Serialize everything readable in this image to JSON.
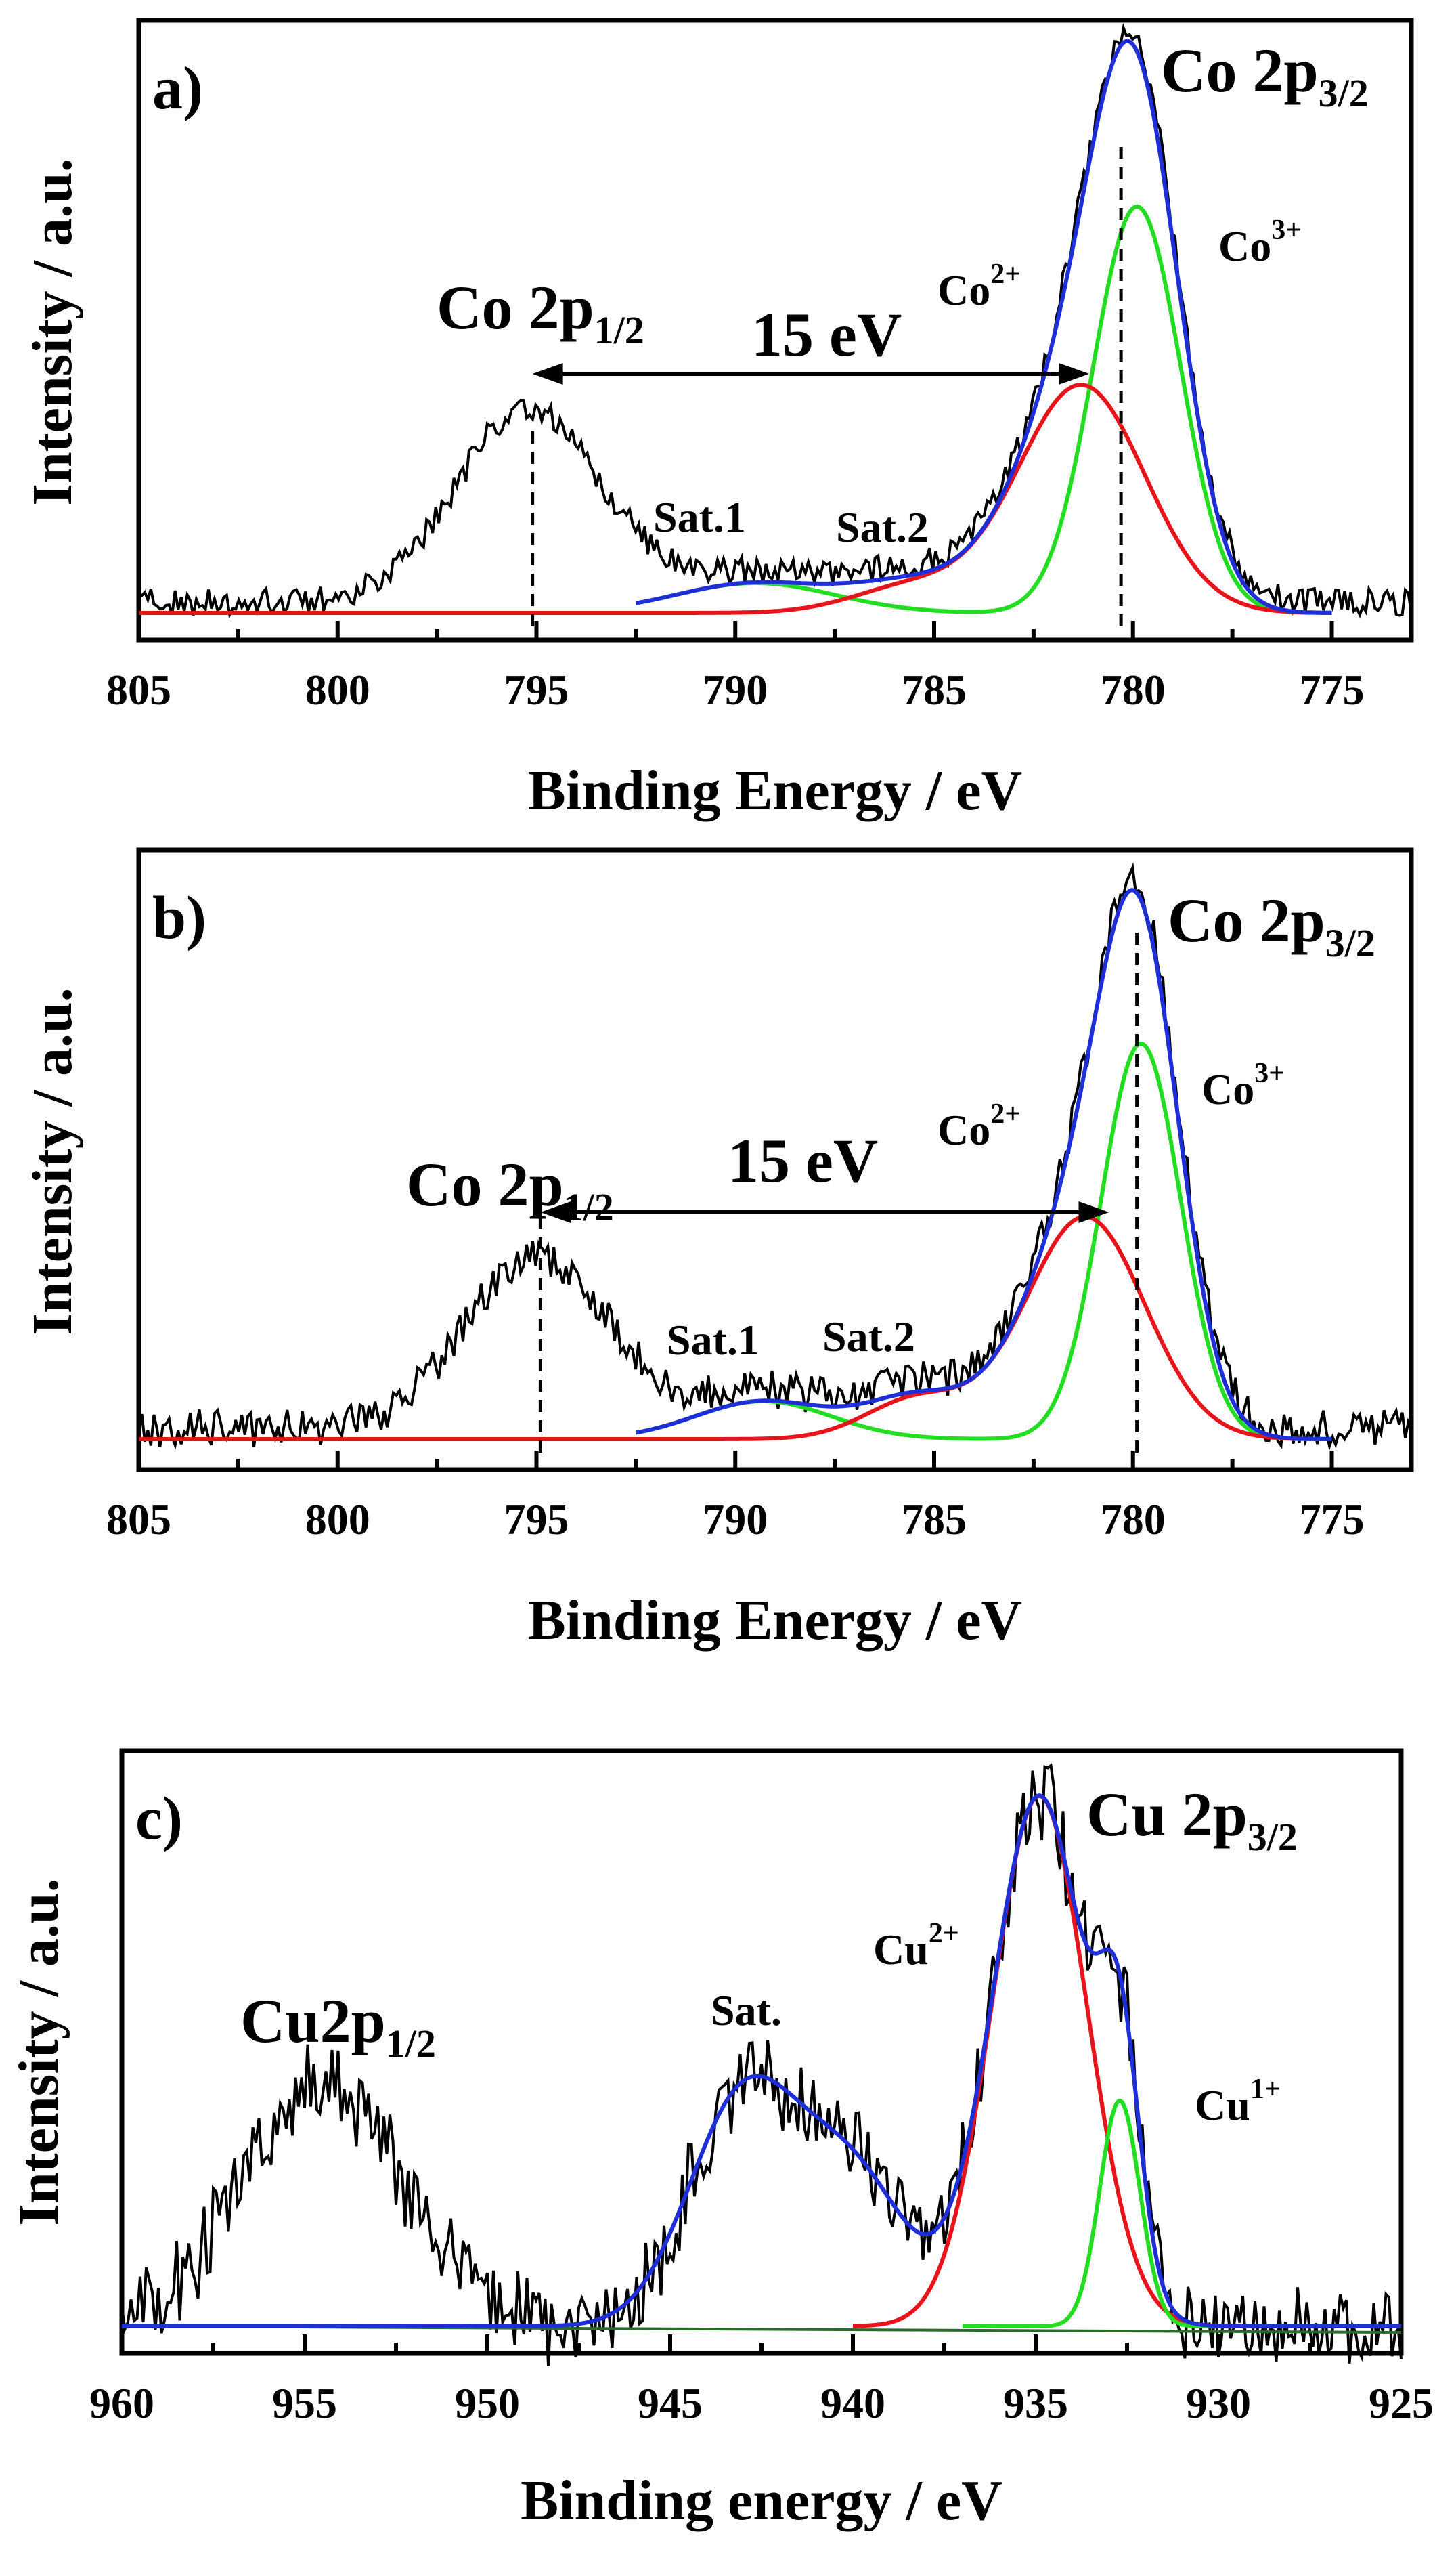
{
  "chart_data": [
    {
      "panel": "a)",
      "type": "line",
      "xlabel": "Binding Energy / eV",
      "ylabel": "Intensity / a.u.",
      "xlim": [
        805,
        773
      ],
      "ylim": [
        0,
        1
      ],
      "xticks": [
        805,
        800,
        795,
        790,
        785,
        780,
        775
      ],
      "colors": {
        "data": "#000000",
        "co2": "#e8141c",
        "co3": "#22dd22",
        "fit": "#1f2fd8",
        "dashed": "#000000"
      },
      "annotations": {
        "p32_main": "Co 2p",
        "p32_sub": "3/2",
        "p12_main": "Co 2p",
        "p12_sub": "1/2",
        "co2_main": "Co",
        "co2_sup": "2+",
        "co3_main": "Co",
        "co3_sup": "3+",
        "sat1": "Sat.1",
        "sat2": "Sat.2",
        "split": "15 eV"
      },
      "dashed_lines": [
        795.1,
        780.3
      ],
      "arrow": [
        795.1,
        781.1
      ],
      "peaks": {
        "p12": {
          "center": 795.2,
          "height": 0.36,
          "width": 1.8
        },
        "co2": {
          "center": 781.3,
          "height": 0.42,
          "width": 1.6
        },
        "co3": {
          "center": 779.9,
          "height": 0.75,
          "width": 1.1
        },
        "sat1": {
          "center": 789.5,
          "height": 0.055,
          "width": 2.0
        },
        "sat2": {
          "center": 785.5,
          "height": 0.05,
          "width": 1.5
        }
      },
      "series": [
        {
          "name": "raw data",
          "color": "#000000",
          "noise": 0.025
        },
        {
          "name": "Co 3+ fit",
          "color": "#22dd22"
        },
        {
          "name": "Co 2+ fit",
          "color": "#e8141c"
        },
        {
          "name": "sum fit",
          "color": "#1f2fd8"
        }
      ]
    },
    {
      "panel": "b)",
      "type": "line",
      "xlabel": "Binding Energy / eV",
      "ylabel": "Intensity / a.u.",
      "xlim": [
        805,
        773
      ],
      "ylim": [
        0,
        1
      ],
      "xticks": [
        805,
        800,
        795,
        790,
        785,
        780,
        775
      ],
      "colors": {
        "data": "#000000",
        "co2": "#e8141c",
        "co3": "#22dd22",
        "fit": "#1f2fd8",
        "dashed": "#000000"
      },
      "annotations": {
        "p32_main": "Co 2p",
        "p32_sub": "3/2",
        "p12_main": "Co 2p",
        "p12_sub": "1/2",
        "co2_main": "Co",
        "co2_sup": "2+",
        "co3_main": "Co",
        "co3_sup": "3+",
        "sat1": "Sat.1",
        "sat2": "Sat.2",
        "split": "15 eV"
      },
      "dashed_lines": [
        794.9,
        779.9
      ],
      "arrow": [
        794.9,
        780.6
      ],
      "peaks": {
        "p12": {
          "center": 795.0,
          "height": 0.32,
          "width": 1.8
        },
        "co2": {
          "center": 781.2,
          "height": 0.41,
          "width": 1.5
        },
        "co3": {
          "center": 779.8,
          "height": 0.73,
          "width": 1.0
        },
        "sat1": {
          "center": 789.3,
          "height": 0.07,
          "width": 1.7
        },
        "sat2": {
          "center": 785.4,
          "height": 0.075,
          "width": 1.3
        }
      },
      "series": [
        {
          "name": "raw data",
          "color": "#000000",
          "noise": 0.035
        },
        {
          "name": "Co 3+ fit",
          "color": "#22dd22"
        },
        {
          "name": "Co 2+ fit",
          "color": "#e8141c"
        },
        {
          "name": "sum fit",
          "color": "#1f2fd8"
        }
      ]
    },
    {
      "panel": "c)",
      "type": "line",
      "xlabel": "Binding energy / eV",
      "ylabel": "Intensity / a.u.",
      "xlim": [
        960,
        925
      ],
      "ylim": [
        0,
        1
      ],
      "xticks": [
        960,
        955,
        950,
        945,
        940,
        935,
        930,
        925
      ],
      "colors": {
        "data": "#000000",
        "cu2": "#e8141c",
        "cu1": "#22dd22",
        "fit": "#1f2fd8"
      },
      "annotations": {
        "p32_main": "Cu 2p",
        "p32_sub": "3/2",
        "p12_main": "Cu2p",
        "p12_sub": "1/2",
        "cu2_main": "Cu",
        "cu2_sup": "2+",
        "cu1_main": "Cu",
        "cu1_sup": "1+",
        "sat": "Sat."
      },
      "peaks": {
        "p12": {
          "center": 954.5,
          "height": 0.4,
          "width": 2.2
        },
        "cu2": {
          "center": 934.9,
          "height": 0.87,
          "width": 1.3
        },
        "cu1": {
          "center": 932.7,
          "height": 0.37,
          "width": 0.55
        },
        "sat_a": {
          "center": 943.0,
          "height": 0.37,
          "width": 1.5
        },
        "sat_b": {
          "center": 940.0,
          "height": 0.24,
          "width": 1.5
        }
      },
      "series": [
        {
          "name": "raw data",
          "color": "#000000",
          "noise": 0.06
        },
        {
          "name": "Cu 2+ fit",
          "color": "#e8141c"
        },
        {
          "name": "Cu 1+ fit",
          "color": "#22dd22"
        },
        {
          "name": "sum fit",
          "color": "#1f2fd8"
        }
      ]
    }
  ]
}
